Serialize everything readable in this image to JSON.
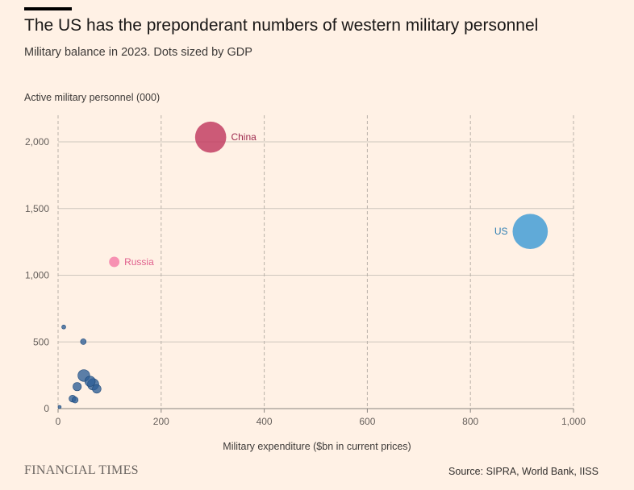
{
  "header": {
    "title": "The US has the preponderant numbers of western military personnel",
    "subtitle": "Military balance in 2023. Dots sized by GDP"
  },
  "footer": {
    "brand": "FINANCIAL TIMES",
    "source": "Source: SIPRA, World Bank, IISS"
  },
  "colors": {
    "background": "#fff1e5",
    "us": "#3d9ad4",
    "china": "#c1385e",
    "russia": "#f57ba6",
    "others": "#2d5d96"
  },
  "chart_data": {
    "type": "scatter",
    "title": "The US has the preponderant numbers of western military personnel",
    "subtitle": "Military balance in 2023. Dots sized by GDP",
    "xlabel": "Military expenditure ($bn in current prices)",
    "ylabel": "Active military personnel (000)",
    "xlim": [
      0,
      1000
    ],
    "ylim": [
      0,
      2000
    ],
    "xticks": [
      0,
      200,
      400,
      600,
      800,
      1000
    ],
    "xtick_labels": [
      "0",
      "200",
      "400",
      "600",
      "800",
      "1,000"
    ],
    "yticks": [
      0,
      500,
      1000,
      1500,
      2000
    ],
    "ytick_labels": [
      "0",
      "500",
      "1,000",
      "1,500",
      "2,000"
    ],
    "x_grid": "dashed vertical",
    "y_grid": "solid horizontal",
    "points": [
      {
        "label": "China",
        "x": 296,
        "y": 2035,
        "gdp_size": 18,
        "color": "china",
        "label_side": "right"
      },
      {
        "label": "US",
        "x": 916,
        "y": 1328,
        "gdp_size": 23,
        "color": "us",
        "label_side": "left"
      },
      {
        "label": "Russia",
        "x": 109,
        "y": 1100,
        "gdp_size": 2.0,
        "color": "russia",
        "label_side": "right"
      },
      {
        "label": "",
        "x": 11,
        "y": 612,
        "gdp_size": 0.3,
        "color": "others"
      },
      {
        "label": "",
        "x": 49,
        "y": 502,
        "gdp_size": 0.6,
        "color": "others"
      },
      {
        "label": "",
        "x": 50,
        "y": 248,
        "gdp_size": 2.6,
        "color": "others"
      },
      {
        "label": "",
        "x": 62,
        "y": 205,
        "gdp_size": 2.0,
        "color": "others"
      },
      {
        "label": "",
        "x": 68,
        "y": 182,
        "gdp_size": 2.4,
        "color": "others"
      },
      {
        "label": "",
        "x": 75,
        "y": 148,
        "gdp_size": 1.4,
        "color": "others"
      },
      {
        "label": "",
        "x": 37,
        "y": 165,
        "gdp_size": 1.3,
        "color": "others"
      },
      {
        "label": "",
        "x": 28,
        "y": 75,
        "gdp_size": 0.9,
        "color": "others"
      },
      {
        "label": "",
        "x": 33,
        "y": 65,
        "gdp_size": 0.7,
        "color": "others"
      },
      {
        "label": "",
        "x": 3,
        "y": 12,
        "gdp_size": 0.04,
        "color": "others"
      }
    ]
  }
}
